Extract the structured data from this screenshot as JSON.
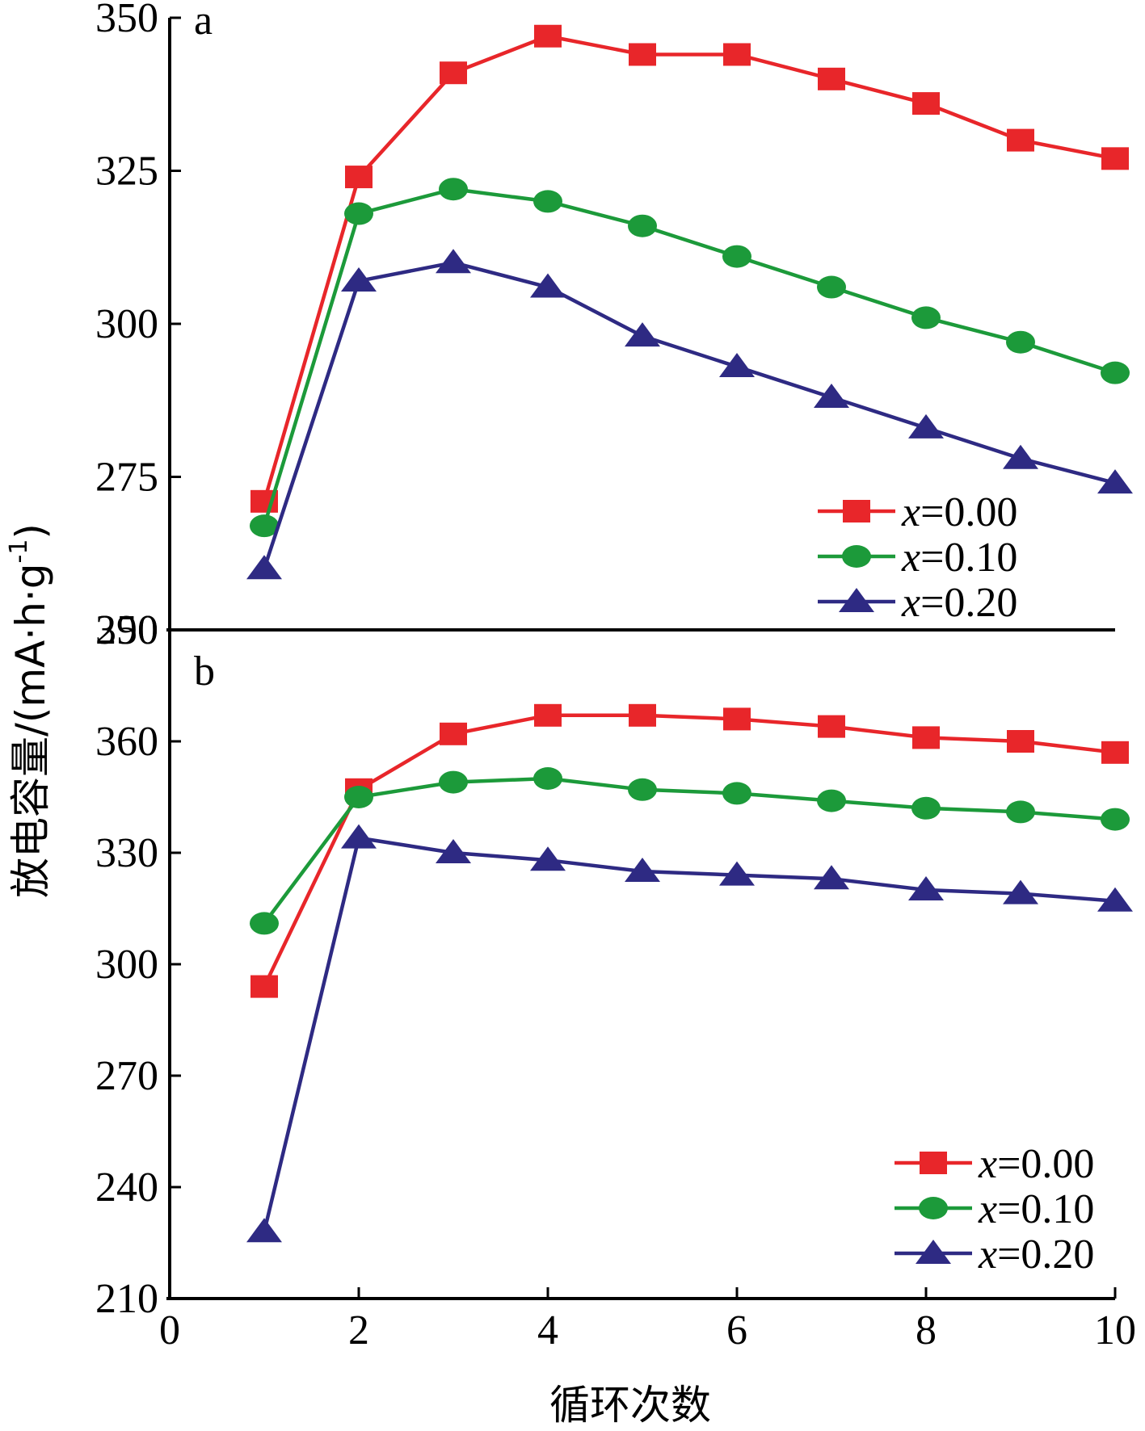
{
  "chart_data": [
    {
      "panel": "a",
      "type": "line",
      "x": [
        1,
        2,
        3,
        4,
        5,
        6,
        7,
        8,
        9,
        10
      ],
      "ylim": [
        250,
        350
      ],
      "yticks": [
        "250",
        "275",
        "300",
        "325",
        "350"
      ],
      "legend_position": "lower-right",
      "series": [
        {
          "name": "x=0.00",
          "marker": "square",
          "color": "#e8262a",
          "values": [
            271,
            324,
            341,
            347,
            344,
            344,
            340,
            336,
            330,
            327
          ]
        },
        {
          "name": "x=0.10",
          "marker": "circle",
          "color": "#1c9a3a",
          "values": [
            267,
            318,
            322,
            320,
            316,
            311,
            306,
            301,
            297,
            292
          ]
        },
        {
          "name": "x=0.20",
          "marker": "triangle",
          "color": "#2e2a83",
          "values": [
            260,
            307,
            310,
            306,
            298,
            293,
            288,
            283,
            278,
            274
          ]
        }
      ]
    },
    {
      "panel": "b",
      "type": "line",
      "x": [
        1,
        2,
        3,
        4,
        5,
        6,
        7,
        8,
        9,
        10
      ],
      "xlim": [
        0,
        10
      ],
      "xticks": [
        "0",
        "2",
        "4",
        "6",
        "8",
        "10"
      ],
      "ylim": [
        210,
        390
      ],
      "yticks": [
        "210",
        "240",
        "270",
        "300",
        "330",
        "360",
        "390"
      ],
      "legend_position": "lower-right",
      "series": [
        {
          "name": "x=0.00",
          "marker": "square",
          "color": "#e8262a",
          "values": [
            294,
            347,
            362,
            367,
            367,
            366,
            364,
            361,
            360,
            357
          ]
        },
        {
          "name": "x=0.10",
          "marker": "circle",
          "color": "#1c9a3a",
          "values": [
            311,
            345,
            349,
            350,
            347,
            346,
            344,
            342,
            341,
            339
          ]
        },
        {
          "name": "x=0.20",
          "marker": "triangle",
          "color": "#2e2a83",
          "values": [
            228,
            334,
            330,
            328,
            325,
            324,
            323,
            320,
            319,
            317
          ]
        }
      ]
    }
  ],
  "axes": {
    "ylabel_main": "放电容量/(mA·h·g",
    "ylabel_sup": "-1",
    "ylabel_close": ")",
    "xlabel": "循环次数"
  }
}
